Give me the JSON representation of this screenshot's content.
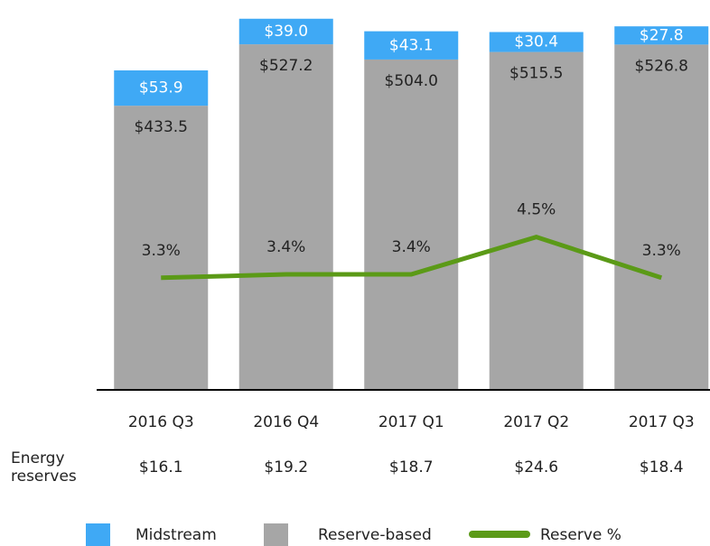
{
  "chart_data": {
    "type": "bar",
    "categories": [
      "2016 Q3",
      "2016 Q4",
      "2017 Q1",
      "2017 Q2",
      "2017 Q3"
    ],
    "series": [
      {
        "name": "Midstream",
        "color": "#3fa9f5",
        "values": [
          53.9,
          39.0,
          43.1,
          30.4,
          27.8
        ],
        "value_labels": [
          "$53.9",
          "$39.0",
          "$43.1",
          "$30.4",
          "$27.8"
        ]
      },
      {
        "name": "Reserve-based",
        "color": "#a6a6a6",
        "values": [
          433.5,
          527.2,
          504.0,
          515.5,
          526.8
        ],
        "value_labels": [
          "$433.5",
          "$527.2",
          "$504.0",
          "$515.5",
          "$526.8"
        ]
      },
      {
        "name": "Reserve %",
        "color": "#5b9a17",
        "axis": "y2",
        "type": "line",
        "values": [
          3.3,
          3.4,
          3.4,
          4.5,
          3.3
        ],
        "value_labels": [
          "3.3%",
          "3.4%",
          "3.4%",
          "4.5%",
          "3.3%"
        ]
      }
    ],
    "ylim": [
      0,
      570
    ],
    "y2lim": [
      0,
      11
    ],
    "table_row": {
      "label": "Energy reserves",
      "values": [
        16.1,
        19.2,
        18.7,
        24.6,
        18.4
      ],
      "value_labels": [
        "$16.1",
        "$19.2",
        "$18.7",
        "$24.6",
        "$18.4"
      ]
    }
  }
}
